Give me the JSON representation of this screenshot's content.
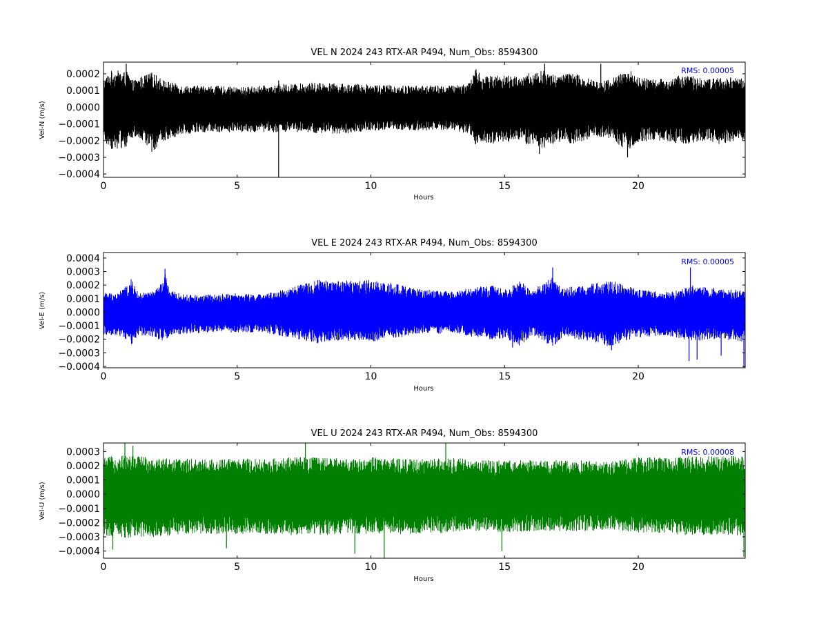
{
  "chart_data": [
    {
      "type": "line",
      "title": "VEL N 2024 243 RTX-AR  P494, Num_Obs: 8594300",
      "xlabel": "Hours",
      "ylabel": "Vel-N (m/s)",
      "xlim": [
        0,
        24
      ],
      "ylim": [
        -0.00042,
        0.00027
      ],
      "xticks": [
        0,
        5,
        10,
        15,
        20
      ],
      "xtick_labels": [
        "0",
        "5",
        "10",
        "15",
        "20"
      ],
      "yticks": [
        0.0002,
        0.0001,
        0.0,
        -0.0001,
        -0.0002,
        -0.0003,
        -0.0004
      ],
      "ytick_labels": [
        "0.0002",
        "0.0001",
        "0.0000",
        "−0.0001",
        "−0.0002",
        "−0.0003",
        "−0.0004"
      ],
      "rms_label": "RMS:  0.00005",
      "color": "#000000",
      "envelope": {
        "x": [
          0.0,
          0.3,
          0.6,
          0.9,
          1.1,
          1.5,
          1.8,
          2.3,
          3.0,
          4.0,
          5.0,
          6.0,
          6.5,
          6.6,
          7.0,
          8.0,
          9.0,
          10.0,
          11.0,
          12.0,
          13.0,
          13.7,
          13.9,
          14.2,
          14.5,
          15.0,
          15.5,
          16.0,
          16.5,
          17.0,
          17.5,
          18.0,
          18.5,
          19.0,
          19.4,
          19.7,
          20.0,
          20.5,
          21.0,
          21.5,
          22.0,
          22.5,
          23.0,
          23.5,
          24.0
        ],
        "upper": [
          0.00017,
          0.00022,
          0.00022,
          0.00021,
          0.00016,
          0.00019,
          0.00021,
          0.00016,
          0.00013,
          0.00013,
          0.00012,
          0.00013,
          0.00013,
          0.00014,
          0.00014,
          0.00015,
          0.00014,
          0.00014,
          0.00013,
          0.00013,
          0.00013,
          0.00015,
          0.00024,
          0.00018,
          0.00019,
          0.0002,
          0.00018,
          0.00021,
          0.00022,
          0.00019,
          0.00021,
          0.00018,
          0.00016,
          0.00017,
          0.00021,
          0.00022,
          0.00018,
          0.00017,
          0.00017,
          0.00019,
          0.00019,
          0.00017,
          0.00018,
          0.00018,
          0.00017
        ],
        "lower": [
          -0.00021,
          -0.00025,
          -0.00025,
          -0.00024,
          -0.00018,
          -0.00021,
          -0.00027,
          -0.0002,
          -0.00016,
          -0.00015,
          -0.00015,
          -0.00015,
          -0.00015,
          -0.00015,
          -0.00015,
          -0.00016,
          -0.00016,
          -0.00014,
          -0.00014,
          -0.00014,
          -0.00014,
          -0.00016,
          -0.00024,
          -0.00021,
          -0.00022,
          -0.00021,
          -0.00021,
          -0.00023,
          -0.00025,
          -0.00021,
          -0.00022,
          -0.0002,
          -0.00018,
          -0.00019,
          -0.00024,
          -0.00026,
          -0.00021,
          -0.0002,
          -0.0002,
          -0.00022,
          -0.00022,
          -0.0002,
          -0.00022,
          -0.00021,
          -0.0002
        ]
      },
      "spikes": [
        {
          "x": 6.55,
          "y": -0.00042
        },
        {
          "x": 6.55,
          "y": 0.00016
        },
        {
          "x": 0.85,
          "y": 0.00026
        },
        {
          "x": 16.5,
          "y": 0.00026
        },
        {
          "x": 18.6,
          "y": 0.00026
        },
        {
          "x": 19.6,
          "y": -0.0003
        },
        {
          "x": 16.3,
          "y": -0.00028
        }
      ]
    },
    {
      "type": "line",
      "title": "VEL E 2024 243 RTX-AR  P494, Num_Obs: 8594300",
      "xlabel": "Hours",
      "ylabel": "Vel-E (m/s)",
      "xlim": [
        0,
        24
      ],
      "ylim": [
        -0.00041,
        0.00044
      ],
      "xticks": [
        0,
        5,
        10,
        15,
        20
      ],
      "xtick_labels": [
        "0",
        "5",
        "10",
        "15",
        "20"
      ],
      "yticks": [
        0.0004,
        0.0003,
        0.0002,
        0.0001,
        0.0,
        -0.0001,
        -0.0002,
        -0.0003,
        -0.0004
      ],
      "ytick_labels": [
        "0.0004",
        "0.0003",
        "0.0002",
        "0.0001",
        "0.0000",
        "−0.0001",
        "−0.0002",
        "−0.0003",
        "−0.0004"
      ],
      "rms_label": "RMS:  0.00005",
      "color": "#0000ff",
      "envelope": {
        "x": [
          0.0,
          0.5,
          0.9,
          1.05,
          1.3,
          1.8,
          2.2,
          2.3,
          2.5,
          3.0,
          4.0,
          5.0,
          6.0,
          6.5,
          7.0,
          7.5,
          8.0,
          8.5,
          9.0,
          9.5,
          10.0,
          10.5,
          11.0,
          11.5,
          12.0,
          12.5,
          13.0,
          13.5,
          14.0,
          14.5,
          15.0,
          15.3,
          15.6,
          16.0,
          16.5,
          16.8,
          17.2,
          17.6,
          18.0,
          18.5,
          19.0,
          19.5,
          20.0,
          20.5,
          21.0,
          21.5,
          22.0,
          22.5,
          23.0,
          23.5,
          24.0
        ],
        "upper": [
          0.00015,
          0.00014,
          0.0002,
          0.00025,
          0.00014,
          0.00015,
          0.00022,
          0.00029,
          0.00016,
          0.00013,
          0.00013,
          0.00014,
          0.00013,
          0.00016,
          0.00018,
          0.00021,
          0.00024,
          0.00023,
          0.00024,
          0.00023,
          0.00024,
          0.00022,
          0.00021,
          0.00018,
          0.00017,
          0.00016,
          0.00015,
          0.00017,
          0.00019,
          0.0002,
          0.00017,
          0.0002,
          0.00023,
          0.00016,
          0.00022,
          0.00026,
          0.00018,
          0.00019,
          0.0002,
          0.00022,
          0.00024,
          0.0002,
          0.00017,
          0.00016,
          0.00015,
          0.00017,
          0.0002,
          0.00019,
          0.00018,
          0.00017,
          0.00016
        ],
        "lower": [
          -0.00017,
          -0.00017,
          -0.00021,
          -0.00024,
          -0.00017,
          -0.00018,
          -0.00022,
          -0.00021,
          -0.00017,
          -0.00016,
          -0.00015,
          -0.00015,
          -0.00015,
          -0.00017,
          -0.00019,
          -0.00021,
          -0.00023,
          -0.00021,
          -0.00022,
          -0.00021,
          -0.00022,
          -0.0002,
          -0.00019,
          -0.00017,
          -0.00016,
          -0.00016,
          -0.00015,
          -0.00017,
          -0.00019,
          -0.00021,
          -0.00019,
          -0.00023,
          -0.00025,
          -0.00017,
          -0.00022,
          -0.00026,
          -0.00018,
          -0.0002,
          -0.00021,
          -0.00023,
          -0.00026,
          -0.00021,
          -0.00019,
          -0.00018,
          -0.00017,
          -0.00019,
          -0.00022,
          -0.00021,
          -0.0002,
          -0.00021,
          -0.00022
        ]
      },
      "spikes": [
        {
          "x": 2.3,
          "y": 0.00032
        },
        {
          "x": 16.8,
          "y": 0.00033
        },
        {
          "x": 21.95,
          "y": 0.00033
        },
        {
          "x": 21.9,
          "y": -0.00036
        },
        {
          "x": 22.2,
          "y": -0.00035
        },
        {
          "x": 23.1,
          "y": -0.00032
        },
        {
          "x": 23.95,
          "y": -0.00041
        },
        {
          "x": 15.3,
          "y": -0.00026
        },
        {
          "x": 19.0,
          "y": -0.00028
        }
      ]
    },
    {
      "type": "line",
      "title": "VEL U 2024 243 RTX-AR  P494, Num_Obs: 8594300",
      "xlabel": "Hours",
      "ylabel": "Vel-U (m/s)",
      "xlim": [
        0,
        24
      ],
      "ylim": [
        -0.00045,
        0.00036
      ],
      "xticks": [
        0,
        5,
        10,
        15,
        20
      ],
      "xtick_labels": [
        "0",
        "5",
        "10",
        "15",
        "20"
      ],
      "yticks": [
        0.0003,
        0.0002,
        0.0001,
        0.0,
        -0.0001,
        -0.0002,
        -0.0003,
        -0.0004
      ],
      "ytick_labels": [
        "0.0003",
        "0.0002",
        "0.0001",
        "0.0000",
        "−0.0001",
        "−0.0002",
        "−0.0003",
        "−0.0004"
      ],
      "rms_label": "RMS:  0.00008",
      "color": "#008000",
      "envelope": {
        "x": [
          0.0,
          1.0,
          2.0,
          3.0,
          4.0,
          5.0,
          6.0,
          7.0,
          8.0,
          9.0,
          10.0,
          11.0,
          12.0,
          13.0,
          14.0,
          15.0,
          16.0,
          17.0,
          18.0,
          19.0,
          20.0,
          21.0,
          22.0,
          23.0,
          24.0
        ],
        "upper": [
          0.00026,
          0.00028,
          0.00026,
          0.00025,
          0.00025,
          0.00025,
          0.00025,
          0.00026,
          0.00026,
          0.00025,
          0.00026,
          0.00025,
          0.00025,
          0.00026,
          0.00024,
          0.00024,
          0.00024,
          0.00024,
          0.00024,
          0.00023,
          0.00026,
          0.00026,
          0.00027,
          0.00027,
          0.00027
        ],
        "lower": [
          -0.00029,
          -0.00031,
          -0.0003,
          -0.00028,
          -0.00028,
          -0.00028,
          -0.00028,
          -0.00029,
          -0.00029,
          -0.00028,
          -0.00028,
          -0.00028,
          -0.00028,
          -0.00027,
          -0.00026,
          -0.00027,
          -0.00026,
          -0.00026,
          -0.00026,
          -0.00025,
          -0.00027,
          -0.00028,
          -0.00029,
          -0.00029,
          -0.00029
        ]
      },
      "spikes": [
        {
          "x": 0.8,
          "y": 0.00036
        },
        {
          "x": 1.1,
          "y": 0.00034
        },
        {
          "x": 7.55,
          "y": 0.00036
        },
        {
          "x": 12.8,
          "y": 0.00036
        },
        {
          "x": 0.35,
          "y": -0.00039
        },
        {
          "x": 4.6,
          "y": -0.00038
        },
        {
          "x": 9.4,
          "y": -0.00042
        },
        {
          "x": 10.5,
          "y": -0.00045
        },
        {
          "x": 14.9,
          "y": -0.0004
        },
        {
          "x": 23.95,
          "y": -0.00044
        }
      ]
    }
  ]
}
